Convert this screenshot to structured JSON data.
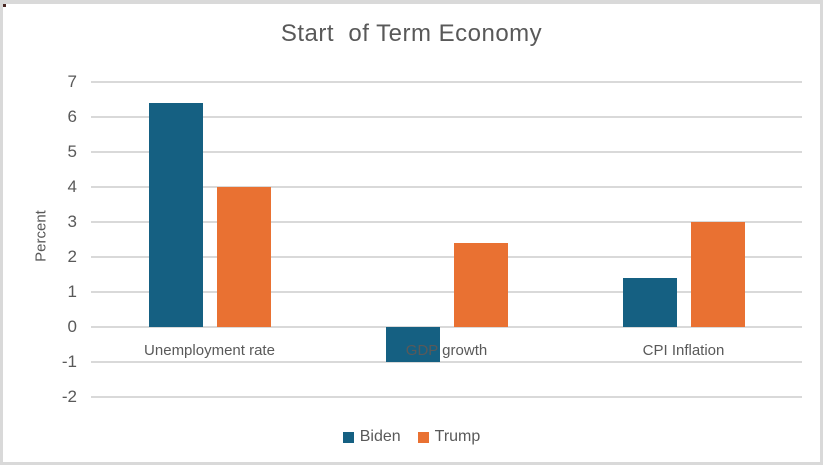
{
  "window": {
    "background": "#FFFFFF",
    "border_color": "#D9D9D9"
  },
  "chart_data": {
    "type": "bar",
    "title": "Start  of Term Economy",
    "ylabel": "Percent",
    "xlabel": "",
    "categories": [
      "Unemployment rate",
      "GDP growth",
      "CPI Inflation"
    ],
    "series": [
      {
        "name": "Biden",
        "color": "#156082",
        "values": [
          6.4,
          -1.0,
          1.4
        ]
      },
      {
        "name": "Trump",
        "color": "#E97132",
        "values": [
          4.0,
          2.4,
          3.0
        ]
      }
    ],
    "ylim": [
      -2,
      7
    ],
    "yticks": [
      7,
      6,
      5,
      4,
      3,
      2,
      1,
      0,
      -1,
      -2
    ],
    "grid": true,
    "gridline_color": "#D9D9D9",
    "text_color": "#595959",
    "legend_position": "bottom",
    "legend_labels": [
      "Biden",
      "Trump"
    ]
  }
}
